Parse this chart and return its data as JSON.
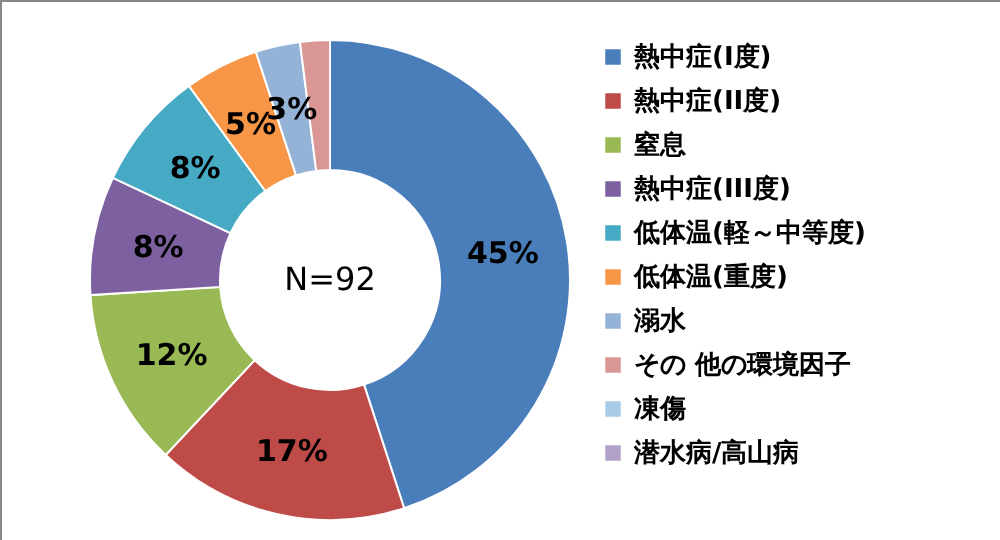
{
  "chart_data": {
    "type": "donut",
    "categories": [
      "熱中症(I度)",
      "熱中症(II度)",
      "窒息",
      "熱中症(III度)",
      "低体温(軽～中等度)",
      "低体温(重度)",
      "溺水",
      "その 他の環境因子",
      "凍傷",
      "潜水病/高山病"
    ],
    "values": [
      45,
      17,
      12,
      8,
      8,
      5,
      3,
      2,
      0,
      0
    ],
    "value_labels": [
      "45%",
      "17%",
      "12%",
      "8%",
      "8%",
      "5%",
      "3%",
      null,
      null,
      null
    ],
    "colors": [
      "#4a7ebb",
      "#be4b48",
      "#98b954",
      "#7d60a0",
      "#46aac5",
      "#f79646",
      "#95b3d7",
      "#d99694",
      "#a9cbe8",
      "#b3a2c7"
    ],
    "annotations": [
      "N=92"
    ],
    "legend": "right"
  }
}
